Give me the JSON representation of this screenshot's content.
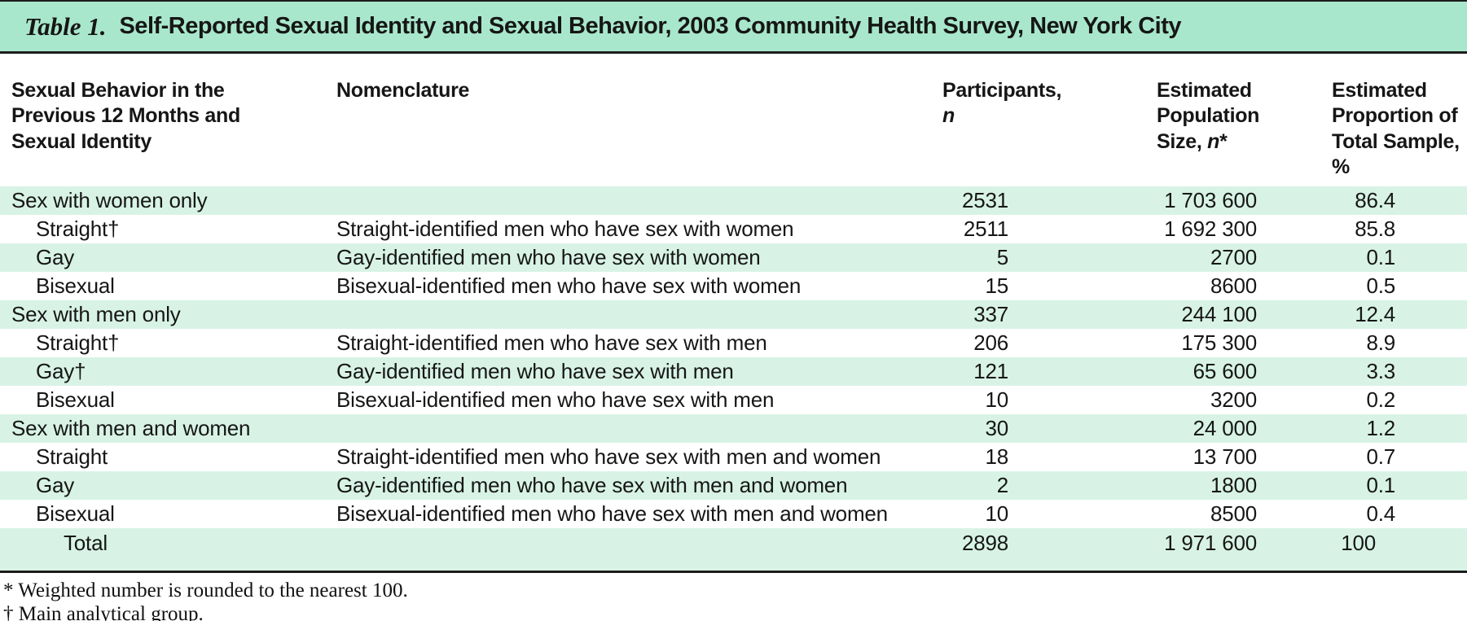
{
  "title": {
    "label": "Table 1.",
    "text": "Self-Reported Sexual Identity and Sexual Behavior, 2003 Community Health Survey, New York City"
  },
  "table": {
    "headers": {
      "behavior": "Sexual Behavior in the\nPrevious 12 Months and\nSexual Identity",
      "nomenclature": "Nomenclature",
      "participants_prefix": "Participants,\n",
      "participants_symbol": "n",
      "population_prefix": "Estimated\nPopulation\nSize, ",
      "population_symbol": "n",
      "population_suffix": "*",
      "proportion": "Estimated\nProportion of\nTotal Sample,\n%"
    },
    "rows": [
      {
        "label": "Sex with women only",
        "indent": 0,
        "nomenclature": "",
        "participants": "2531",
        "population": "1 703 600",
        "proportion": "86.4"
      },
      {
        "label": "Straight†",
        "indent": 1,
        "nomenclature": "Straight-identified men who have sex with women",
        "participants": "2511",
        "population": "1 692 300",
        "proportion": "85.8"
      },
      {
        "label": "Gay",
        "indent": 1,
        "nomenclature": "Gay-identified men who have sex with women",
        "participants": "5",
        "population": "2700",
        "proportion": "0.1"
      },
      {
        "label": "Bisexual",
        "indent": 1,
        "nomenclature": "Bisexual-identified men who have sex with women",
        "participants": "15",
        "population": "8600",
        "proportion": "0.5"
      },
      {
        "label": "Sex with men only",
        "indent": 0,
        "nomenclature": "",
        "participants": "337",
        "population": "244 100",
        "proportion": "12.4"
      },
      {
        "label": "Straight†",
        "indent": 1,
        "nomenclature": "Straight-identified men who have sex with men",
        "participants": "206",
        "population": "175 300",
        "proportion": "8.9"
      },
      {
        "label": "Gay†",
        "indent": 1,
        "nomenclature": "Gay-identified men who have sex with men",
        "participants": "121",
        "population": "65 600",
        "proportion": "3.3"
      },
      {
        "label": "Bisexual",
        "indent": 1,
        "nomenclature": "Bisexual-identified men who have sex with men",
        "participants": "10",
        "population": "3200",
        "proportion": "0.2"
      },
      {
        "label": "Sex with men and women",
        "indent": 0,
        "nomenclature": "",
        "participants": "30",
        "population": "24 000",
        "proportion": "1.2"
      },
      {
        "label": "Straight",
        "indent": 1,
        "nomenclature": "Straight-identified men who have sex with men and women",
        "participants": "18",
        "population": "13 700",
        "proportion": "0.7"
      },
      {
        "label": "Gay",
        "indent": 1,
        "nomenclature": "Gay-identified men who have sex with men and women",
        "participants": "2",
        "population": "1800",
        "proportion": "0.1"
      },
      {
        "label": "Bisexual",
        "indent": 1,
        "nomenclature": "Bisexual-identified men who have sex with men and women",
        "participants": "10",
        "population": "8500",
        "proportion": "0.4"
      },
      {
        "label": "Total",
        "indent": 2,
        "nomenclature": "",
        "participants": "2898",
        "population": "1 971 600",
        "proportion": "100",
        "total": true
      }
    ]
  },
  "footnotes": [
    "* Weighted number is rounded to the nearest 100.",
    "† Main analytical group."
  ],
  "colors": {
    "title_bar_bg": "#a8e7cc",
    "stripe_bg": "#d8f3e6",
    "rule_color": "#1c1c1c"
  }
}
